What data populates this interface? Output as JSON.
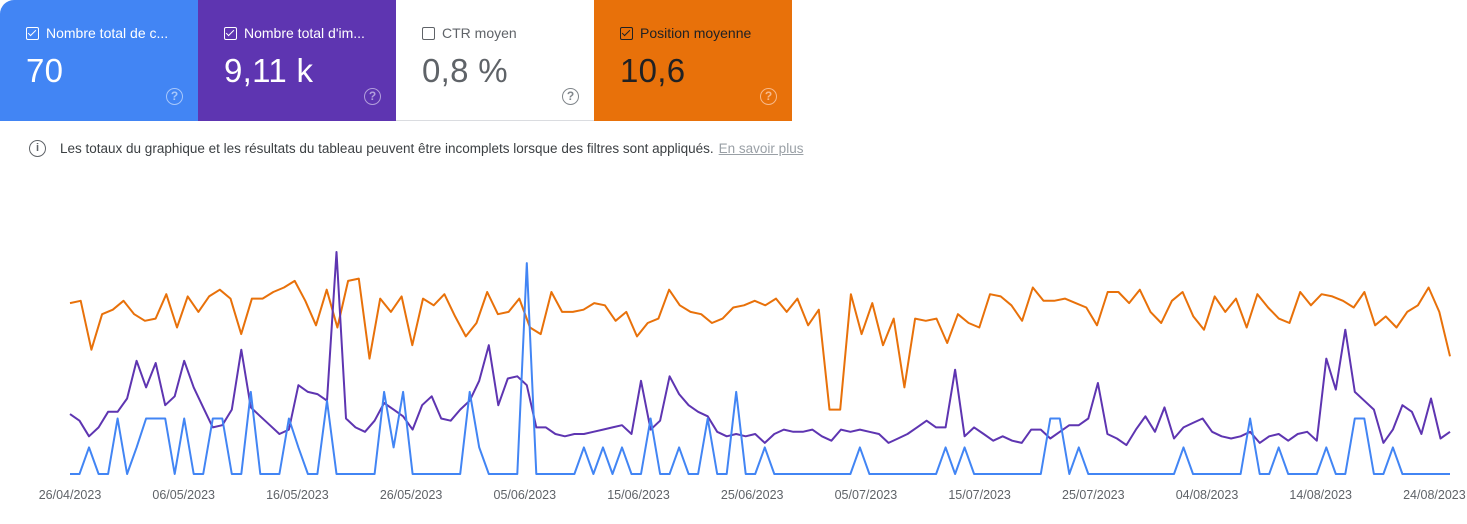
{
  "metrics": [
    {
      "label": "Nombre total de c...",
      "value": "70",
      "checked": true,
      "bg": "#4285f4",
      "fg": "#ffffff",
      "help_color": "#a7c7fb"
    },
    {
      "label": "Nombre total d'im...",
      "value": "9,11 k",
      "checked": true,
      "bg": "#5e35b1",
      "fg": "#ffffff",
      "help_color": "#b29edc"
    },
    {
      "label": "CTR moyen",
      "value": "0,8 %",
      "checked": false,
      "bg": "#ffffff",
      "fg": "#5f6368",
      "help_color": "#80868b"
    },
    {
      "label": "Position moyenne",
      "value": "10,6",
      "checked": true,
      "bg": "#e8710a",
      "fg": "#202124",
      "help_color": "#f7b98a"
    }
  ],
  "help_glyph": "?",
  "notice": {
    "icon": "info-icon",
    "icon_glyph": "i",
    "text": "Les totaux du graphique et les résultats du tableau peuvent être incomplets lorsque des filtres sont appliqués.",
    "link": "En savoir plus"
  },
  "chart_data": {
    "type": "line",
    "title": "",
    "xlabel": "",
    "ylabel": "",
    "grid": false,
    "legend": "metric cards above chart",
    "x_tick_labels": [
      "26/04/2023",
      "06/05/2023",
      "16/05/2023",
      "26/05/2023",
      "05/06/2023",
      "15/06/2023",
      "25/06/2023",
      "05/07/2023",
      "15/07/2023",
      "25/07/2023",
      "04/08/2023",
      "14/08/2023",
      "24/08/2023"
    ],
    "x_start": "26/04/2023",
    "x_step_days": 1,
    "note": "Values are normalized plot heights (0 = chart baseline, 100 = chart top) estimated from pixels; each series has its own hidden axis.",
    "series": [
      {
        "name": "Position moyenne",
        "color": "#e8710a",
        "values": [
          77,
          78,
          56,
          72,
          74,
          78,
          72,
          69,
          70,
          81,
          66,
          80,
          73,
          80,
          83,
          79,
          63,
          79,
          79,
          82,
          84,
          87,
          78,
          67,
          83,
          66,
          87,
          88,
          52,
          79,
          73,
          80,
          58,
          79,
          76,
          81,
          71,
          62,
          68,
          82,
          72,
          73,
          79,
          66,
          63,
          82,
          73,
          73,
          74,
          77,
          76,
          69,
          73,
          62,
          68,
          70,
          83,
          76,
          73,
          72,
          68,
          70,
          75,
          76,
          78,
          76,
          79,
          73,
          79,
          67,
          74,
          29,
          29,
          81,
          63,
          77,
          58,
          70,
          39,
          70,
          69,
          70,
          59,
          72,
          68,
          66,
          81,
          80,
          76,
          69,
          84,
          78,
          78,
          79,
          77,
          75,
          67,
          82,
          82,
          77,
          83,
          73,
          68,
          78,
          82,
          71,
          65,
          80,
          73,
          79,
          66,
          81,
          75,
          70,
          68,
          82,
          76,
          81,
          80,
          78,
          75,
          82,
          67,
          71,
          66,
          73,
          76,
          84,
          73,
          53
        ]
      },
      {
        "name": "Nombre total d'impressions",
        "color": "#5e35b1",
        "values": [
          27,
          24,
          17,
          21,
          28,
          28,
          34,
          51,
          39,
          50,
          31,
          35,
          51,
          39,
          30,
          21,
          22,
          29,
          56,
          30,
          26,
          22,
          18,
          20,
          40,
          37,
          36,
          33,
          100,
          25,
          21,
          19,
          24,
          32,
          29,
          26,
          20,
          31,
          35,
          25,
          24,
          29,
          33,
          42,
          58,
          31,
          43,
          44,
          40,
          21,
          21,
          18,
          17,
          18,
          18,
          19,
          20,
          21,
          22,
          18,
          42,
          20,
          24,
          44,
          36,
          31,
          28,
          26,
          19,
          17,
          18,
          17,
          18,
          14,
          18,
          20,
          19,
          19,
          20,
          17,
          15,
          20,
          19,
          20,
          19,
          18,
          14,
          16,
          18,
          21,
          24,
          21,
          21,
          47,
          17,
          21,
          18,
          15,
          17,
          15,
          14,
          20,
          20,
          16,
          19,
          22,
          22,
          25,
          41,
          18,
          16,
          13,
          20,
          26,
          19,
          30,
          16,
          21,
          23,
          25,
          19,
          17,
          16,
          17,
          19,
          14,
          17,
          18,
          15,
          18,
          19,
          15,
          52,
          38,
          65,
          37,
          33,
          29,
          14,
          20,
          31,
          28,
          18,
          34,
          16,
          19
        ]
      },
      {
        "name": "Nombre total de clics",
        "color": "#4285f4",
        "values": [
          0,
          0,
          12,
          0,
          0,
          25,
          0,
          12,
          25,
          25,
          25,
          0,
          25,
          0,
          0,
          25,
          25,
          0,
          0,
          37,
          0,
          0,
          0,
          25,
          12,
          0,
          0,
          33,
          0,
          0,
          0,
          0,
          0,
          37,
          12,
          37,
          0,
          0,
          0,
          0,
          0,
          0,
          37,
          12,
          0,
          0,
          0,
          0,
          95,
          0,
          0,
          0,
          0,
          0,
          12,
          0,
          12,
          0,
          12,
          0,
          0,
          25,
          0,
          0,
          12,
          0,
          0,
          25,
          0,
          0,
          37,
          0,
          0,
          12,
          0,
          0,
          0,
          0,
          0,
          0,
          0,
          0,
          0,
          12,
          0,
          0,
          0,
          0,
          0,
          0,
          0,
          0,
          12,
          0,
          12,
          0,
          0,
          0,
          0,
          0,
          0,
          0,
          0,
          25,
          25,
          0,
          12,
          0,
          0,
          0,
          0,
          0,
          0,
          0,
          0,
          0,
          0,
          12,
          0,
          0,
          0,
          0,
          0,
          0,
          25,
          0,
          0,
          12,
          0,
          0,
          0,
          0,
          12,
          0,
          0,
          25,
          25,
          0,
          0,
          12,
          0,
          0,
          0,
          0,
          0,
          0
        ]
      }
    ]
  }
}
